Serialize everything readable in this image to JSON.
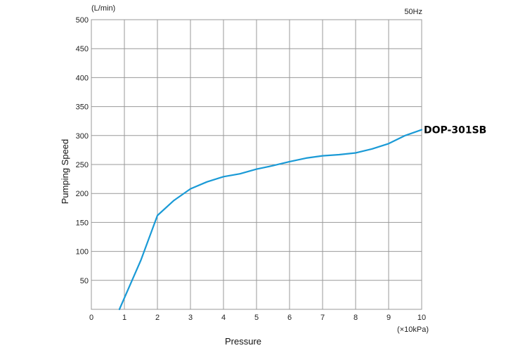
{
  "chart_data": {
    "type": "line",
    "title": "",
    "frequency_label": "50Hz",
    "xlabel": "Pressure",
    "xunit": "(×10kPa)",
    "ylabel": "Pumping Speed",
    "yunit": "(L/min)",
    "xlim": [
      0,
      10
    ],
    "ylim": [
      0,
      500
    ],
    "xticks": [
      0,
      1,
      2,
      3,
      4,
      5,
      6,
      7,
      8,
      9,
      10
    ],
    "yticks": [
      50,
      100,
      150,
      200,
      250,
      300,
      350,
      400,
      450,
      500
    ],
    "grid": true,
    "color": "#1a9ad6",
    "series": [
      {
        "name": "DOP-301SB",
        "x": [
          0.85,
          1.5,
          2,
          2.5,
          3,
          3.5,
          4,
          4.5,
          5,
          5.5,
          6,
          6.5,
          7,
          7.5,
          8,
          8.5,
          9,
          9.5,
          10
        ],
        "y": [
          0,
          85,
          162,
          188,
          208,
          220,
          229,
          234,
          242,
          248,
          255,
          261,
          265,
          267,
          270,
          277,
          286,
          300,
          310
        ]
      }
    ]
  }
}
